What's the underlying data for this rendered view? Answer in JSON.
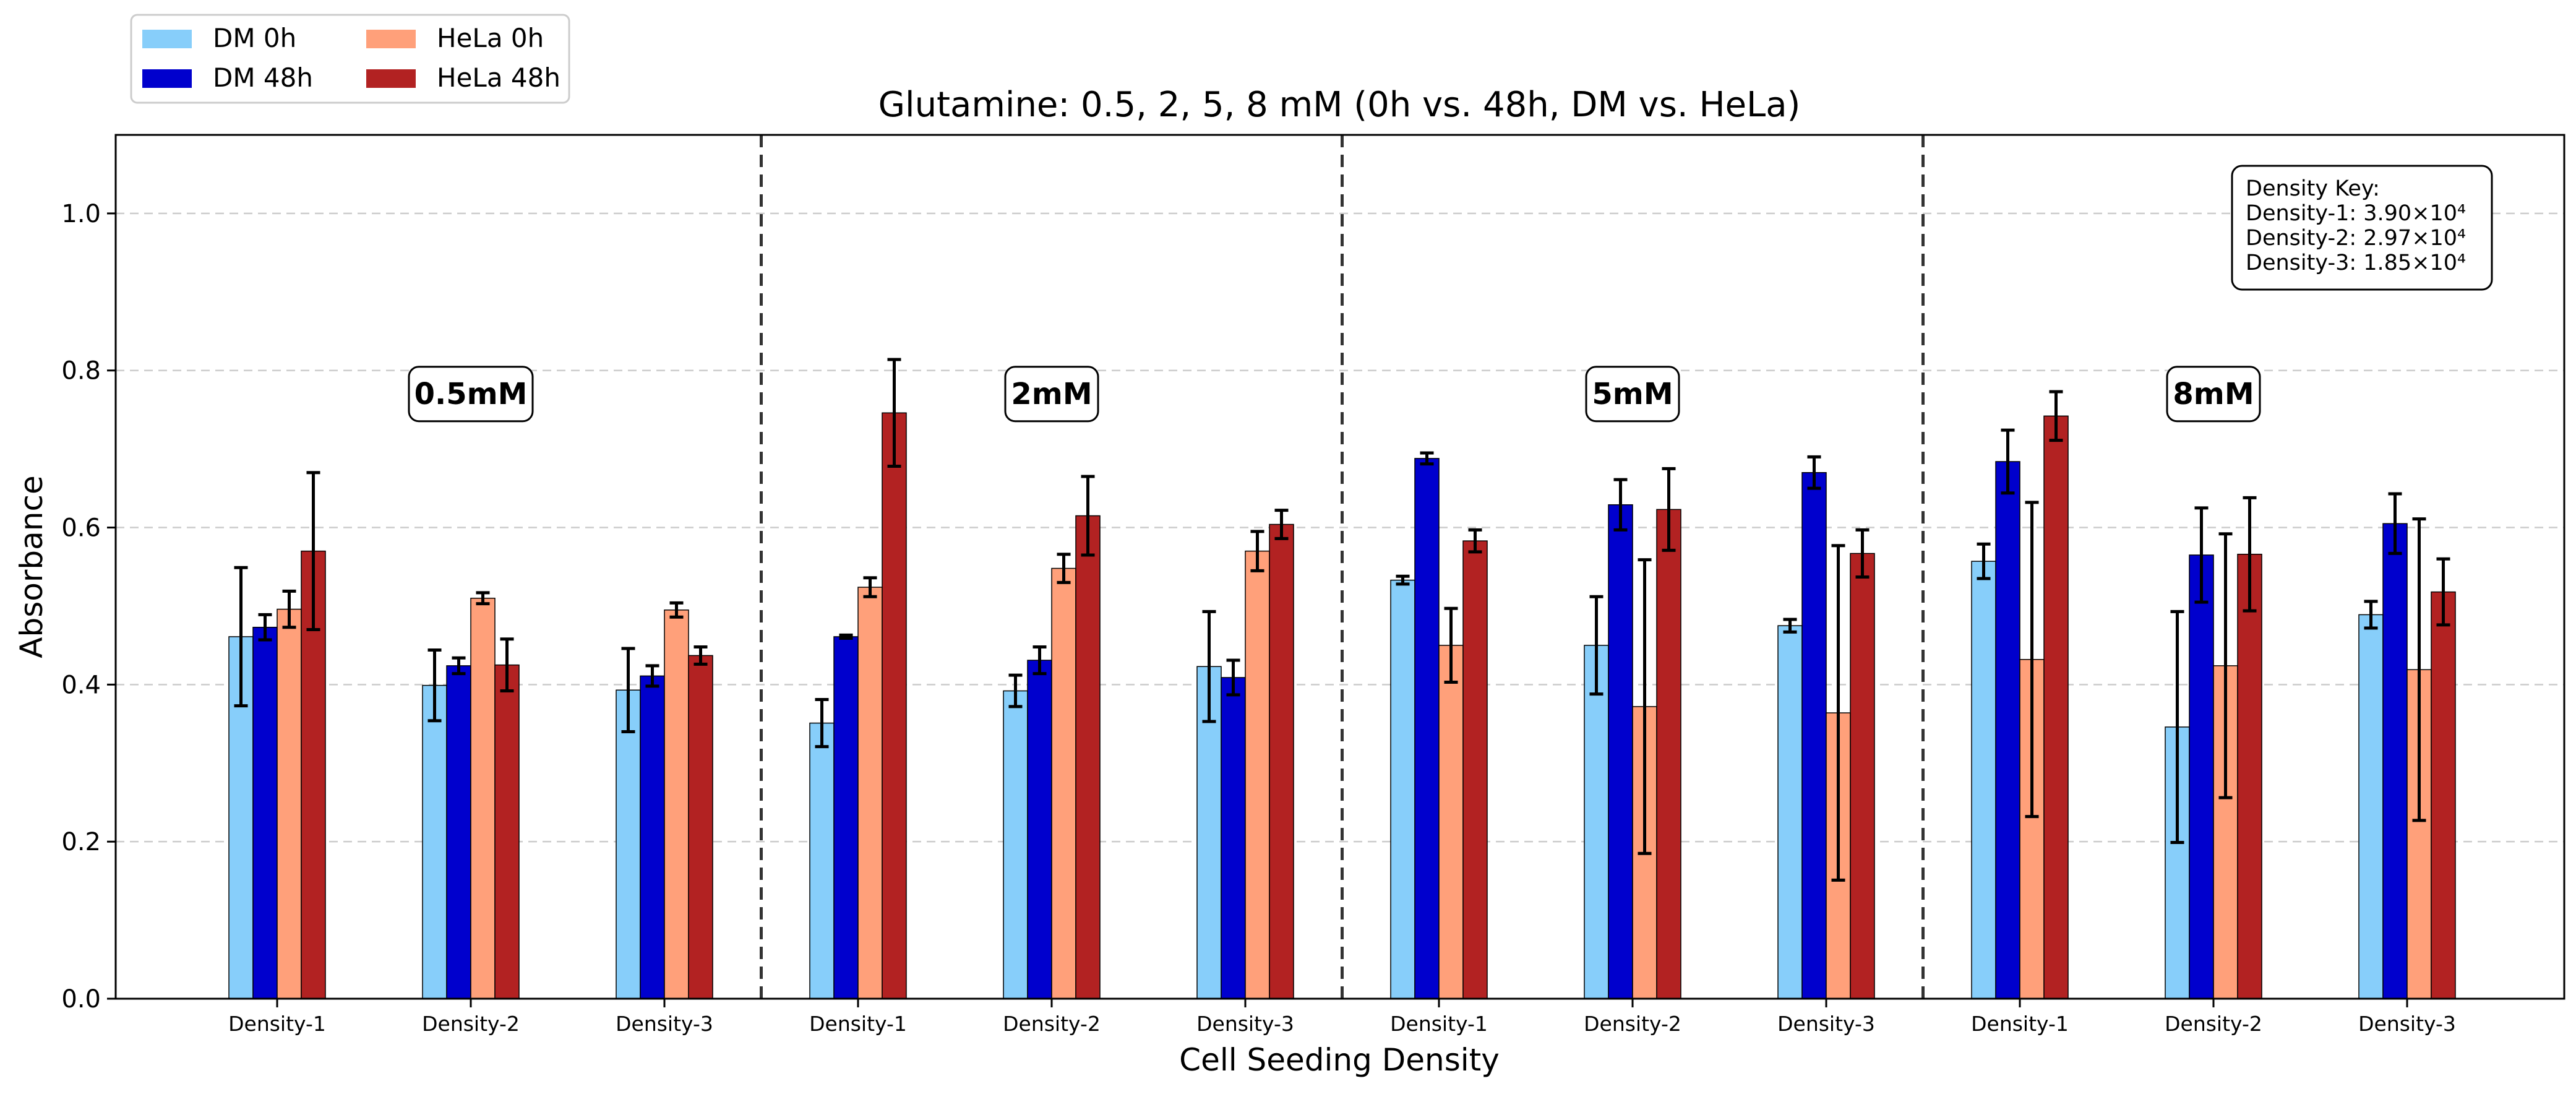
{
  "chart_data": {
    "type": "bar",
    "title": "Glutamine: 0.5, 2, 5, 8 mM (0h vs. 48h, DM vs. HeLa)",
    "xlabel": "Cell Seeding Density",
    "ylabel": "Absorbance",
    "ylim": [
      0,
      1.1
    ],
    "yticks": [
      "0.0",
      "0.2",
      "0.4",
      "0.6",
      "0.8",
      "1.0"
    ],
    "grid": "y-dashed",
    "legend_position": "top-left",
    "categories": [
      "Density-1",
      "Density-2",
      "Density-3",
      "Density-1",
      "Density-2",
      "Density-3",
      "Density-1",
      "Density-2",
      "Density-3",
      "Density-1",
      "Density-2",
      "Density-3"
    ],
    "groups": [
      "0.5mM",
      "2mM",
      "5mM",
      "8mM"
    ],
    "series": [
      {
        "name": "DM 0h",
        "color": "#87CEFA",
        "values": [
          0.461,
          0.399,
          0.393,
          0.351,
          0.392,
          0.423,
          0.533,
          0.45,
          0.475,
          0.557,
          0.346,
          0.489
        ],
        "errors": [
          0.088,
          0.045,
          0.053,
          0.03,
          0.02,
          0.07,
          0.005,
          0.062,
          0.008,
          0.022,
          0.147,
          0.017
        ]
      },
      {
        "name": "DM 48h",
        "color": "#0000CD",
        "values": [
          0.473,
          0.424,
          0.411,
          0.461,
          0.431,
          0.409,
          0.688,
          0.629,
          0.67,
          0.684,
          0.565,
          0.605
        ],
        "errors": [
          0.016,
          0.01,
          0.013,
          0.002,
          0.017,
          0.022,
          0.007,
          0.032,
          0.02,
          0.04,
          0.06,
          0.038
        ]
      },
      {
        "name": "HeLa 0h",
        "color": "#FFA07A",
        "values": [
          0.496,
          0.51,
          0.495,
          0.524,
          0.548,
          0.57,
          0.45,
          0.372,
          0.364,
          0.432,
          0.424,
          0.419
        ],
        "errors": [
          0.023,
          0.007,
          0.009,
          0.012,
          0.018,
          0.025,
          0.047,
          0.187,
          0.213,
          0.2,
          0.168,
          0.192
        ]
      },
      {
        "name": "HeLa 48h",
        "color": "#B22222",
        "values": [
          0.57,
          0.425,
          0.437,
          0.746,
          0.615,
          0.604,
          0.583,
          0.623,
          0.567,
          0.742,
          0.566,
          0.518
        ],
        "errors": [
          0.1,
          0.033,
          0.011,
          0.068,
          0.05,
          0.018,
          0.014,
          0.052,
          0.03,
          0.031,
          0.072,
          0.042
        ]
      }
    ],
    "annotations": {
      "density_key": [
        "Density Key:",
        "Density-1: 3.90×10⁴",
        "Density-2: 2.97×10⁴",
        "Density-3: 1.85×10⁴"
      ]
    }
  }
}
